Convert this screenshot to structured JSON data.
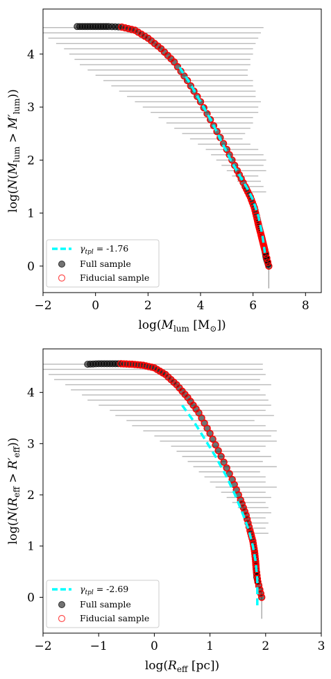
{
  "colors": {
    "error_bars": "#808080",
    "full_sample": "#000000",
    "fiducial": "#ff0000",
    "fit": "#00ffff"
  },
  "chart_data": [
    {
      "type": "scatter",
      "panel": "top",
      "xlabel_base": "log(",
      "xlabel_var": "M",
      "xlabel_sub": "lum",
      "xlabel_unit": " [M",
      "xlabel_unit_sub": "⊙",
      "xlabel_close": "])",
      "ylabel_parts": [
        "log(",
        "N",
        "(",
        "M",
        "lum",
        " > ",
        "M′",
        "lum",
        "))"
      ],
      "xlim": [
        -2,
        8.6
      ],
      "ylim": [
        -0.5,
        4.85
      ],
      "xticks": [
        -2,
        0,
        2,
        4,
        6,
        8
      ],
      "yticks": [
        0,
        1,
        2,
        3,
        4
      ],
      "xtick_labels": [
        "−2",
        "0",
        "2",
        "4",
        "6",
        "8"
      ],
      "ytick_labels": [
        "0",
        "1",
        "2",
        "3",
        "4"
      ],
      "legend": {
        "placement": "lower-left",
        "fit_symbol": "γ",
        "fit_sub": "tpl",
        "fit_value": " = -1.76",
        "full_sample": "Full sample",
        "fiducial_sample": "Fiducial sample"
      },
      "series": [
        {
          "role": "full",
          "x": [
            -0.7,
            -0.3,
            0.1,
            0.5,
            1.0,
            1.5,
            2.0,
            2.5,
            3.0,
            3.5,
            4.0,
            4.5,
            5.0,
            5.4,
            5.7,
            5.9,
            6.05,
            6.15,
            6.22,
            6.3,
            6.35,
            6.4,
            6.45,
            6.5,
            6.6
          ],
          "y": [
            4.52,
            4.52,
            4.52,
            4.52,
            4.51,
            4.45,
            4.3,
            4.1,
            3.85,
            3.5,
            3.1,
            2.65,
            2.2,
            1.8,
            1.5,
            1.3,
            1.1,
            0.9,
            0.75,
            0.6,
            0.5,
            0.4,
            0.3,
            0.15,
            0.0
          ]
        },
        {
          "role": "fiducial",
          "x": [
            1.0,
            1.5,
            2.0,
            2.5,
            3.0,
            3.5,
            4.0,
            4.5,
            5.0,
            5.4,
            5.7,
            5.9,
            6.05,
            6.15,
            6.22,
            6.3,
            6.35,
            6.4,
            6.45,
            6.6
          ],
          "y": [
            4.51,
            4.45,
            4.3,
            4.1,
            3.85,
            3.5,
            3.1,
            2.65,
            2.2,
            1.8,
            1.5,
            1.3,
            1.1,
            0.9,
            0.75,
            0.6,
            0.5,
            0.4,
            0.3,
            0.0
          ]
        },
        {
          "role": "fit",
          "x": [
            3.2,
            3.6,
            4.0,
            4.4,
            4.8,
            5.2,
            5.5,
            5.8,
            6.0,
            6.2,
            6.35,
            6.45
          ],
          "y": [
            3.75,
            3.45,
            3.1,
            2.75,
            2.35,
            1.95,
            1.7,
            1.45,
            1.25,
            0.95,
            0.6,
            0.25
          ]
        }
      ],
      "error_bars": {
        "y": [
          4.5,
          4.4,
          4.3,
          4.2,
          4.1,
          4.0,
          3.9,
          3.8,
          3.7,
          3.6,
          3.5,
          3.4,
          3.3,
          3.2,
          3.1,
          3.0,
          2.9,
          2.8,
          2.7,
          2.6,
          2.5,
          2.4,
          2.3,
          2.2,
          2.1,
          2.0,
          1.9,
          1.8,
          1.7,
          1.6,
          1.5,
          1.4
        ],
        "xlow": [
          -2.0,
          -2.0,
          -1.8,
          -1.5,
          -1.2,
          -1.0,
          -0.8,
          -0.6,
          -0.3,
          0.0,
          0.3,
          0.6,
          0.9,
          1.2,
          1.5,
          1.8,
          2.1,
          2.4,
          2.7,
          3.0,
          3.3,
          3.6,
          3.9,
          4.2,
          4.4,
          4.6,
          4.8,
          5.0,
          5.2,
          5.4,
          5.6,
          5.8
        ],
        "xhigh": [
          6.4,
          6.3,
          6.2,
          6.1,
          6.0,
          6.0,
          5.9,
          5.9,
          5.8,
          5.8,
          6.0,
          6.0,
          6.1,
          6.1,
          6.3,
          6.2,
          6.2,
          6.0,
          6.0,
          5.9,
          5.7,
          5.6,
          5.9,
          6.2,
          6.4,
          6.5,
          6.4,
          6.5,
          6.2,
          6.3,
          6.4,
          6.5
        ]
      }
    },
    {
      "type": "scatter",
      "panel": "bottom",
      "xlabel_base": "log(",
      "xlabel_var": "R",
      "xlabel_sub": "eff",
      "xlabel_unit": " [pc])",
      "ylabel_parts": [
        "log(",
        "N",
        "(",
        "R",
        "eff",
        " > ",
        "R′",
        "eff",
        "))"
      ],
      "xlim": [
        -2,
        3
      ],
      "ylim": [
        -0.7,
        4.85
      ],
      "xticks": [
        -2,
        -1,
        0,
        1,
        2,
        3
      ],
      "yticks": [
        0,
        1,
        2,
        3,
        4
      ],
      "xtick_labels": [
        "−2",
        "−1",
        "0",
        "1",
        "2",
        "3"
      ],
      "ytick_labels": [
        "0",
        "1",
        "2",
        "3",
        "4"
      ],
      "legend": {
        "placement": "lower-left",
        "fit_symbol": "γ",
        "fit_sub": "tpl",
        "fit_value": " = -2.69",
        "full_sample": "Full sample",
        "fiducial_sample": "Fiducial sample"
      },
      "series": [
        {
          "role": "full",
          "x": [
            -1.2,
            -1.0,
            -0.8,
            -0.6,
            -0.4,
            -0.2,
            0.0,
            0.2,
            0.4,
            0.6,
            0.8,
            1.0,
            1.2,
            1.4,
            1.55,
            1.65,
            1.72,
            1.77,
            1.8,
            1.82,
            1.83,
            1.84,
            1.86,
            1.93
          ],
          "y": [
            4.55,
            4.56,
            4.56,
            4.56,
            4.55,
            4.53,
            4.48,
            4.35,
            4.15,
            3.9,
            3.6,
            3.2,
            2.75,
            2.3,
            1.9,
            1.6,
            1.3,
            1.1,
            0.9,
            0.7,
            0.55,
            0.4,
            0.3,
            0.0
          ]
        },
        {
          "role": "fiducial",
          "x": [
            -0.6,
            -0.4,
            -0.2,
            0.0,
            0.2,
            0.4,
            0.6,
            0.8,
            1.0,
            1.2,
            1.4,
            1.55,
            1.65,
            1.72,
            1.77,
            1.8,
            1.82,
            1.83,
            1.86,
            1.93
          ],
          "y": [
            4.56,
            4.55,
            4.53,
            4.48,
            4.35,
            4.15,
            3.9,
            3.6,
            3.2,
            2.75,
            2.3,
            1.9,
            1.6,
            1.3,
            1.1,
            0.9,
            0.7,
            0.55,
            0.3,
            0.0
          ]
        },
        {
          "role": "fit",
          "x": [
            0.5,
            0.7,
            0.9,
            1.1,
            1.3,
            1.45,
            1.6,
            1.7,
            1.77,
            1.82,
            1.85,
            1.85
          ],
          "y": [
            3.75,
            3.45,
            3.1,
            2.75,
            2.35,
            2.0,
            1.6,
            1.3,
            1.0,
            0.7,
            0.35,
            -0.2
          ]
        }
      ],
      "error_bars": {
        "y": [
          4.55,
          4.45,
          4.35,
          4.25,
          4.15,
          4.05,
          3.95,
          3.85,
          3.75,
          3.65,
          3.55,
          3.45,
          3.35,
          3.25,
          3.15,
          3.05,
          2.95,
          2.85,
          2.75,
          2.65,
          2.55,
          2.45,
          2.35,
          2.25,
          2.15,
          2.05,
          1.95,
          1.85,
          1.75,
          1.65,
          1.55,
          1.45,
          1.35,
          1.25
        ],
        "xlow": [
          -2.0,
          -2.0,
          -1.9,
          -1.8,
          -1.6,
          -1.5,
          -1.3,
          -1.2,
          -1.0,
          -0.8,
          -0.7,
          -0.5,
          -0.4,
          -0.2,
          0.0,
          0.1,
          0.3,
          0.4,
          0.5,
          0.6,
          0.7,
          0.8,
          0.9,
          1.0,
          1.1,
          1.2,
          1.3,
          1.4,
          1.5,
          1.6,
          1.6,
          1.7,
          1.7,
          1.75
        ],
        "xhigh": [
          1.95,
          1.95,
          2.0,
          1.9,
          2.1,
          1.9,
          2.0,
          2.05,
          2.1,
          2.0,
          2.15,
          1.8,
          2.0,
          2.2,
          2.1,
          2.2,
          2.0,
          1.9,
          2.1,
          1.95,
          2.2,
          1.9,
          2.0,
          2.0,
          2.2,
          2.0,
          2.1,
          2.0,
          2.05,
          2.1,
          2.0,
          2.05,
          2.0,
          2.05
        ]
      }
    }
  ]
}
